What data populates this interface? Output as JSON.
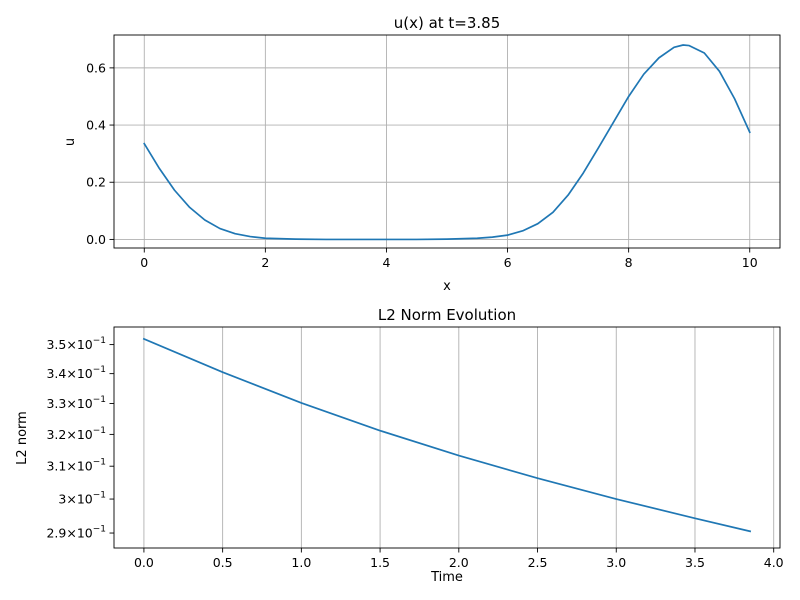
{
  "chart_data": [
    {
      "type": "line",
      "title": "u(x) at t=3.85",
      "xlabel": "x",
      "ylabel": "u",
      "xlim": [
        -0.5,
        10.5
      ],
      "ylim": [
        -0.03,
        0.715
      ],
      "xticks": [
        0,
        2,
        4,
        6,
        8,
        10
      ],
      "xtick_labels": [
        "0",
        "2",
        "4",
        "6",
        "8",
        "10"
      ],
      "yticks": [
        0.0,
        0.2,
        0.4,
        0.6
      ],
      "ytick_labels": [
        "0.0",
        "0.2",
        "0.4",
        "0.6"
      ],
      "grid": true,
      "color": "#1f77b4",
      "series": [
        {
          "x": [
            0,
            0.25,
            0.5,
            0.75,
            1.0,
            1.25,
            1.5,
            1.75,
            2.0,
            2.5,
            3.0,
            3.5,
            4.0,
            4.5,
            5.0,
            5.5,
            5.75,
            6.0,
            6.25,
            6.5,
            6.75,
            7.0,
            7.25,
            7.5,
            7.75,
            8.0,
            8.25,
            8.5,
            8.75,
            8.9,
            9.0,
            9.25,
            9.5,
            9.75,
            10.0
          ],
          "y": [
            0.335,
            0.248,
            0.172,
            0.112,
            0.068,
            0.038,
            0.02,
            0.01,
            0.004,
            0.001,
            0.0,
            0.0,
            0.0,
            0.0,
            0.001,
            0.004,
            0.008,
            0.015,
            0.03,
            0.055,
            0.095,
            0.155,
            0.232,
            0.32,
            0.41,
            0.5,
            0.578,
            0.635,
            0.672,
            0.68,
            0.678,
            0.652,
            0.588,
            0.492,
            0.375
          ]
        }
      ]
    },
    {
      "type": "line",
      "title": "L2 Norm Evolution",
      "xlabel": "Time",
      "ylabel": "L2 norm",
      "yscale": "log",
      "xlim": [
        -0.19,
        4.04
      ],
      "ylim": [
        0.2857,
        0.3562
      ],
      "xticks": [
        0.0,
        0.5,
        1.0,
        1.5,
        2.0,
        2.5,
        3.0,
        3.5,
        4.0
      ],
      "xtick_labels": [
        "0.0",
        "0.5",
        "1.0",
        "1.5",
        "2.0",
        "2.5",
        "3.0",
        "3.5",
        "4.0"
      ],
      "yticks": [
        0.29,
        0.3,
        0.31,
        0.32,
        0.33,
        0.34,
        0.35
      ],
      "ytick_mantissas": [
        "2.9",
        "3",
        "3.1",
        "3.2",
        "3.3",
        "3.4",
        "3.5"
      ],
      "ytick_base": "10",
      "ytick_exponent": "−1",
      "grid_x_only": true,
      "color": "#1f77b4",
      "series": [
        {
          "x": [
            0.0,
            0.5,
            1.0,
            1.5,
            2.0,
            2.5,
            3.0,
            3.5,
            3.85
          ],
          "y": [
            0.352,
            0.3405,
            0.3302,
            0.3212,
            0.3133,
            0.3063,
            0.3,
            0.2943,
            0.2905
          ]
        }
      ]
    }
  ]
}
